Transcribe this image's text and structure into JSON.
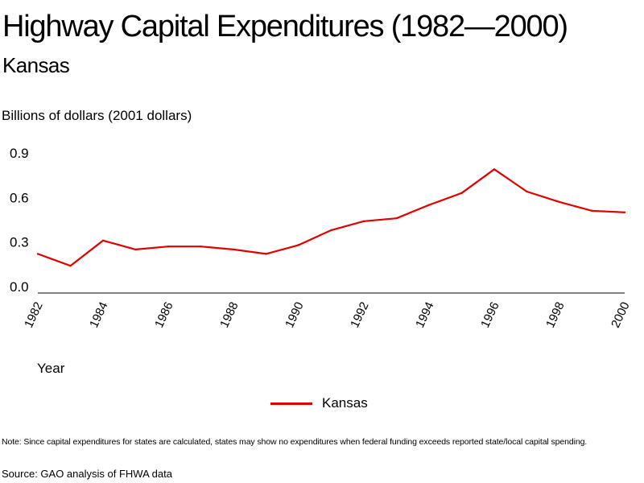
{
  "colors": {
    "series": "#e00000",
    "axis": "#000000"
  },
  "chart_data": {
    "type": "line",
    "title": "Highway Capital Expenditures (1982—2000)",
    "subtitle": "Kansas",
    "ylabel": "Billions of dollars (2001 dollars)",
    "xlabel": "Year",
    "x": [
      1982,
      1983,
      1984,
      1985,
      1986,
      1987,
      1988,
      1989,
      1990,
      1991,
      1992,
      1993,
      1994,
      1995,
      1996,
      1997,
      1998,
      1999,
      2000
    ],
    "series": [
      {
        "name": "Kansas",
        "values": [
          0.22,
          0.14,
          0.31,
          0.25,
          0.27,
          0.27,
          0.25,
          0.22,
          0.28,
          0.38,
          0.44,
          0.46,
          0.55,
          0.63,
          0.79,
          0.64,
          0.57,
          0.51,
          0.5
        ]
      }
    ],
    "xticks": [
      "1982",
      "1984",
      "1986",
      "1988",
      "1990",
      "1992",
      "1994",
      "1996",
      "1998",
      "2000"
    ],
    "yticks": [
      "0.0",
      "0.3",
      "0.6",
      "0.9"
    ],
    "ylim": [
      0,
      0.9
    ],
    "xlim": [
      1982,
      2000
    ],
    "legend_position": "bottom-center",
    "grid": false
  },
  "note": "Note: Since capital expenditures for states are calculated, states may show no expenditures when federal funding exceeds reported state/local capital spending.",
  "source": "Source: GAO analysis of FHWA data"
}
